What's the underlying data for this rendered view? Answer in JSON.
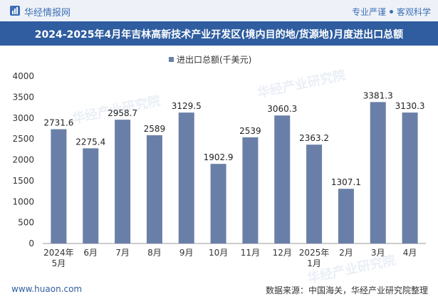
{
  "header": {
    "brand": "华经情报网",
    "slogan_left": "专业严谨",
    "slogan_right": "客观科学"
  },
  "footer": {
    "url": "www.huaon.com",
    "source": "数据来源：中国海关，华经产业研究院整理"
  },
  "watermark": "华经产业研究院",
  "colors": {
    "bar": "#6a7fa8",
    "title_bg": "#2f5d9f",
    "accent": "#3d6fb6"
  },
  "chart_data": {
    "type": "bar",
    "title": "2024-2025年4月年吉林高新技术产业开发区(境内目的地/货源地)月度进出口总额",
    "categories": [
      "2024年\n5月",
      "6月",
      "7月",
      "8月",
      "9月",
      "10月",
      "11月",
      "12月",
      "2025年\n1月",
      "2月",
      "3月",
      "4月"
    ],
    "series": [
      {
        "name": "进出口总额(千美元)",
        "values": [
          2731.6,
          2275.4,
          2958.7,
          2589,
          3129.5,
          1902.9,
          2539,
          3060.3,
          2363.2,
          1307.1,
          3381.3,
          3130.3
        ]
      }
    ],
    "value_labels": [
      "2731.6",
      "2275.4",
      "2958.7",
      "2589",
      "3129.5",
      "1902.9",
      "2539",
      "3060.3",
      "2363.2",
      "1307.1",
      "3381.3",
      "3130.3"
    ],
    "yticks": [
      0,
      500,
      1000,
      1500,
      2000,
      2500,
      3000,
      3500,
      4000
    ],
    "ylim": [
      0,
      4000
    ],
    "grid": false,
    "legend": "top-center"
  }
}
